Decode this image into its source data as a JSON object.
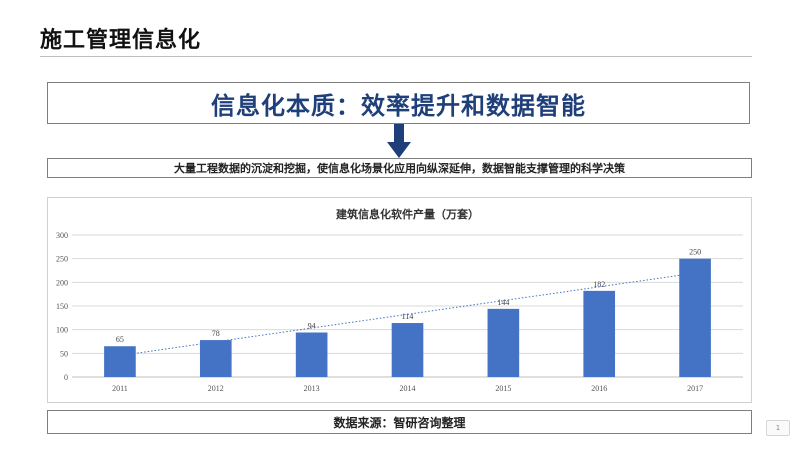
{
  "page": {
    "title": "施工管理信息化",
    "headline": "信息化本质：效率提升和数据智能",
    "subline": "大量工程数据的沉淀和挖掘，使信息化场景化应用向纵深延伸，数据智能支撑管理的科学决策",
    "source": "数据来源：智研咨询整理",
    "page_number": "1"
  },
  "colors": {
    "bar": "#4472c4",
    "headline": "#1f3f7a",
    "arrow": "#1f3f7a",
    "trendline": "#4472c4",
    "gridline": "#d9d9d9"
  },
  "chart_data": {
    "type": "bar",
    "title": "建筑信息化软件产量（万套）",
    "categories": [
      "2011",
      "2012",
      "2013",
      "2014",
      "2015",
      "2016",
      "2017"
    ],
    "values": [
      65,
      78,
      94,
      114,
      144,
      182,
      250
    ],
    "data_labels": [
      "65",
      "78",
      "94",
      "114",
      "144",
      "182",
      "250"
    ],
    "y_ticks": [
      "0",
      "50",
      "100",
      "150",
      "200",
      "250",
      "300"
    ],
    "ylim": [
      0,
      300
    ],
    "trendline": "linear",
    "grid": true,
    "legend": "none"
  }
}
